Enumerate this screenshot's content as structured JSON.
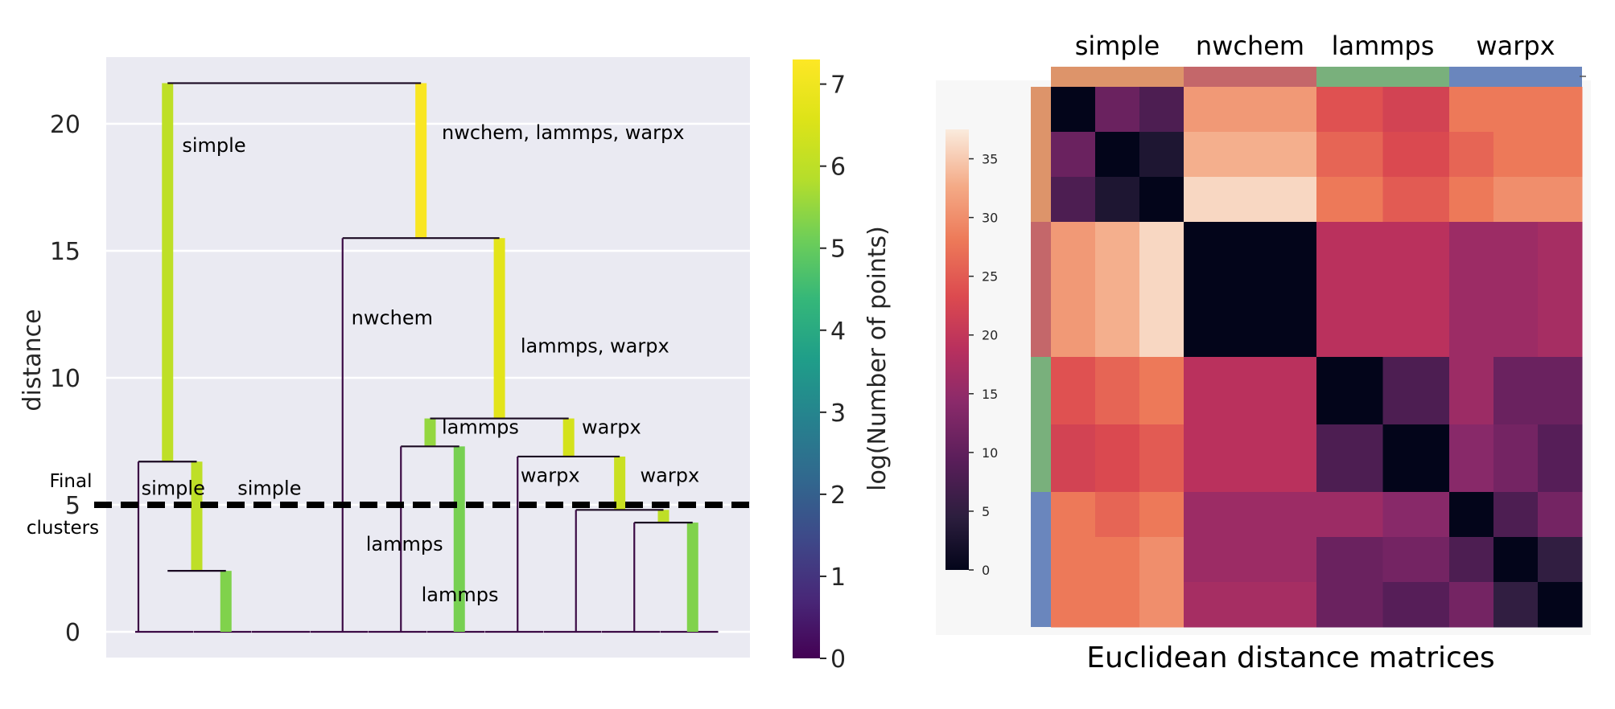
{
  "chart_data": [
    {
      "type": "dendrogram",
      "ylabel": "distance",
      "yticks": [
        0,
        5,
        10,
        15,
        20
      ],
      "ylim": [
        -1,
        22.5
      ],
      "cut_height": 5,
      "cut_label": [
        "Final",
        "clusters"
      ],
      "colorbar": {
        "label": "log(Number of points)",
        "ticks": [
          0,
          1,
          2,
          3,
          4,
          5,
          6,
          7
        ],
        "range": [
          0,
          7.3
        ],
        "colormap": "viridis"
      },
      "links": [
        {
          "x1": 0.5,
          "x2": 1.5,
          "h": 2.4
        },
        {
          "x1": 4.5,
          "x2": 5.5,
          "h": 7.3
        },
        {
          "x1": 8.5,
          "x2": 9.5,
          "h": 4.3
        },
        {
          "x1": 7.5,
          "x2": 9.0,
          "h": 4.8
        },
        {
          "x1": 6.5,
          "x2": 8.25,
          "h": 6.9
        },
        {
          "x1": 0.0,
          "x2": 1.0,
          "h": 6.7
        },
        {
          "x1": 5.0,
          "x2": 7.375,
          "h": 8.4
        },
        {
          "x1": 3.5,
          "x2": 6.1875,
          "h": 15.5
        },
        {
          "x1": 0.5,
          "x2": 4.84375,
          "h": 21.6
        }
      ],
      "branches": [
        {
          "x": 1.5,
          "from": 0,
          "to": 2.4,
          "value": 5.3
        },
        {
          "x": 9.5,
          "from": 0,
          "to": 4.3,
          "value": 5.3
        },
        {
          "x": 9.0,
          "from": 4.3,
          "to": 4.8,
          "value": 6.0
        },
        {
          "x": 5.5,
          "from": 0,
          "to": 7.3,
          "value": 5.2
        },
        {
          "x": 8.25,
          "from": 4.8,
          "to": 6.9,
          "value": 6.2
        },
        {
          "x": 1.0,
          "from": 2.4,
          "to": 6.7,
          "value": 6.0
        },
        {
          "x": 5.0,
          "from": 7.3,
          "to": 8.4,
          "value": 5.5
        },
        {
          "x": 7.375,
          "from": 6.9,
          "to": 8.4,
          "value": 6.4
        },
        {
          "x": 6.1875,
          "from": 8.4,
          "to": 15.5,
          "value": 6.7
        },
        {
          "x": 0.5,
          "from": 6.7,
          "to": 21.6,
          "value": 6.0
        },
        {
          "x": 4.84375,
          "from": 15.5,
          "to": 21.6,
          "value": 7.2
        }
      ],
      "annotations": [
        {
          "text": "simple",
          "x": 0.75,
          "y": 18.9
        },
        {
          "text": "nwchem, lammps, warpx",
          "x": 5.2,
          "y": 19.4
        },
        {
          "text": "nwchem",
          "x": 3.65,
          "y": 12.1
        },
        {
          "text": "lammps, warpx",
          "x": 6.55,
          "y": 11.0
        },
        {
          "text": "lammps",
          "x": 5.2,
          "y": 7.8
        },
        {
          "text": "warpx",
          "x": 7.6,
          "y": 7.8
        },
        {
          "text": "simple",
          "x": 0.05,
          "y": 5.4
        },
        {
          "text": "simple",
          "x": 1.7,
          "y": 5.4
        },
        {
          "text": "warpx",
          "x": 6.55,
          "y": 5.9
        },
        {
          "text": "warpx",
          "x": 8.6,
          "y": 5.9
        },
        {
          "text": "lammps",
          "x": 3.9,
          "y": 3.2
        },
        {
          "text": "lammps",
          "x": 4.85,
          "y": 1.2
        }
      ]
    },
    {
      "type": "heatmap",
      "title": "Euclidean distance matrices",
      "groups": [
        {
          "name": "simple",
          "color": "#dd946a",
          "size": 3
        },
        {
          "name": "nwchem",
          "color": "#c4676a",
          "size": 3
        },
        {
          "name": "lammps",
          "color": "#79b07c",
          "size": 2
        },
        {
          "name": "warpx",
          "color": "#6a86bd",
          "size": 3
        }
      ],
      "colorbar": {
        "ticks": [
          0,
          5,
          10,
          15,
          20,
          25,
          30,
          35
        ],
        "range": [
          0,
          37.5
        ],
        "colormap": "rocket"
      },
      "matrix": [
        [
          0,
          11,
          8,
          31,
          31,
          31,
          24,
          22,
          28,
          28,
          28
        ],
        [
          11,
          0,
          3,
          33,
          33,
          33,
          26,
          23,
          26,
          28,
          28
        ],
        [
          8,
          3,
          0,
          36,
          36,
          36,
          28,
          25,
          28,
          30,
          30
        ],
        [
          31,
          33,
          36,
          0,
          0,
          0,
          19,
          19,
          16,
          16,
          17
        ],
        [
          31,
          33,
          36,
          0,
          0,
          0,
          19,
          19,
          16,
          16,
          17
        ],
        [
          31,
          33,
          36,
          0,
          0,
          0,
          19,
          19,
          16,
          16,
          17
        ],
        [
          24,
          26,
          28,
          19,
          19,
          19,
          0,
          8,
          16,
          11,
          11
        ],
        [
          22,
          23,
          25,
          19,
          19,
          19,
          8,
          0,
          14,
          12,
          9
        ],
        [
          28,
          26,
          28,
          16,
          16,
          16,
          16,
          14,
          0,
          8,
          12
        ],
        [
          28,
          28,
          30,
          16,
          16,
          16,
          11,
          12,
          8,
          0,
          5
        ],
        [
          28,
          28,
          30,
          17,
          17,
          17,
          11,
          9,
          12,
          5,
          0
        ]
      ]
    }
  ]
}
